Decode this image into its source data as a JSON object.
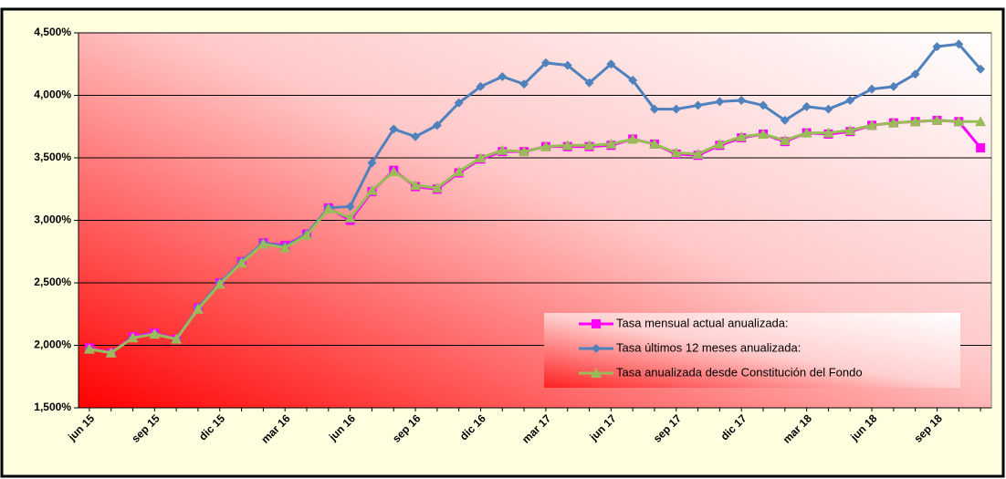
{
  "chart_data": {
    "type": "line",
    "categories": [
      "jun 15",
      null,
      null,
      "sep 15",
      null,
      null,
      "dic 15",
      null,
      null,
      "mar 16",
      null,
      null,
      "jun 16",
      null,
      null,
      "sep 16",
      null,
      null,
      "dic 16",
      null,
      null,
      "mar 17",
      null,
      null,
      "jun 17",
      null,
      null,
      "sep 17",
      null,
      null,
      "dic 17",
      null,
      null,
      "mar 18",
      null,
      null,
      "jun 18",
      null,
      null,
      "sep 18",
      null,
      null
    ],
    "series": [
      {
        "name": "Tasa mensual actual anualizada:",
        "color": "#ff00ff",
        "marker": "square",
        "values": [
          1.98,
          1.94,
          2.07,
          2.1,
          2.05,
          2.3,
          2.5,
          2.67,
          2.82,
          2.8,
          2.89,
          3.1,
          3.0,
          3.23,
          3.4,
          3.27,
          3.25,
          3.38,
          3.49,
          3.55,
          3.55,
          3.59,
          3.59,
          3.59,
          3.6,
          3.65,
          3.61,
          3.53,
          3.52,
          3.6,
          3.66,
          3.69,
          3.63,
          3.7,
          3.69,
          3.71,
          3.76,
          3.78,
          3.79,
          3.8,
          3.79,
          3.58
        ]
      },
      {
        "name": "Tasa últimos 12 meses anualizada:",
        "color": "#4f81bd",
        "marker": "diamond",
        "values": [
          1.97,
          1.94,
          2.06,
          2.09,
          2.05,
          2.3,
          2.5,
          2.67,
          2.82,
          2.79,
          2.89,
          3.1,
          3.11,
          3.46,
          3.73,
          3.67,
          3.76,
          3.94,
          4.07,
          4.15,
          4.09,
          4.26,
          4.24,
          4.1,
          4.25,
          4.12,
          3.89,
          3.89,
          3.92,
          3.95,
          3.96,
          3.92,
          3.8,
          3.91,
          3.89,
          3.96,
          4.05,
          4.07,
          4.17,
          4.39,
          4.41,
          4.21
        ]
      },
      {
        "name": "Tasa anualizada desde Constitución del Fondo",
        "color": "#9bbb59",
        "marker": "triangle",
        "values": [
          1.97,
          1.94,
          2.06,
          2.09,
          2.05,
          2.29,
          2.49,
          2.66,
          2.81,
          2.78,
          2.88,
          3.09,
          3.02,
          3.24,
          3.39,
          3.28,
          3.26,
          3.39,
          3.5,
          3.56,
          3.55,
          3.59,
          3.6,
          3.6,
          3.61,
          3.65,
          3.61,
          3.54,
          3.53,
          3.61,
          3.67,
          3.69,
          3.64,
          3.7,
          3.7,
          3.72,
          3.76,
          3.78,
          3.79,
          3.8,
          3.79,
          3.79
        ]
      }
    ],
    "ylim": [
      1.5,
      4.5
    ],
    "yticks": [
      {
        "value": 1.5,
        "label": "1,500%"
      },
      {
        "value": 2.0,
        "label": "2,000%"
      },
      {
        "value": 2.5,
        "label": "2,500%"
      },
      {
        "value": 3.0,
        "label": "3,000%"
      },
      {
        "value": 3.5,
        "label": "3,500%"
      },
      {
        "value": 4.0,
        "label": "4,000%"
      },
      {
        "value": 4.5,
        "label": "4,500%"
      }
    ],
    "grid": true,
    "legend": "lower-right"
  }
}
